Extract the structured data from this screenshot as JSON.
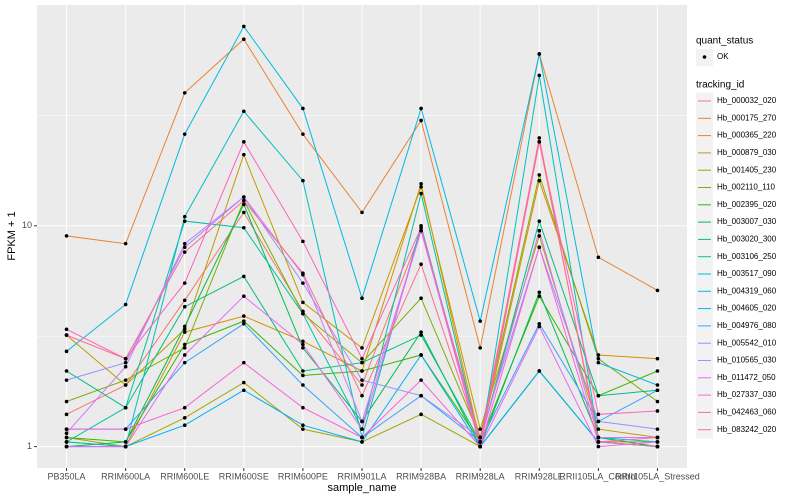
{
  "chart_data": {
    "type": "line",
    "x_label": "sample_name",
    "y_label": "FPKM + 1",
    "log_y": true,
    "grid": true,
    "categories": [
      "PB350LA",
      "RRIM600LA",
      "RRIM600LE",
      "RRIM600SE",
      "RRIM600PE",
      "RRIM901LA",
      "RRIM928BA",
      "RRIM928LA",
      "RRIM928LE",
      "RRII105LA_Control",
      "RRII105LA_Stressed"
    ],
    "ylim": [
      0.8,
      100
    ],
    "yticks": [
      1,
      10
    ],
    "legend_position": "right",
    "quant_status": {
      "title": "quant_status",
      "levels": [
        "OK"
      ]
    },
    "legend_title": "tracking_id",
    "series": [
      {
        "name": "Hb_000032_020",
        "color": "#F8766D",
        "values": [
          1.4,
          1.9,
          4.6,
          11.5,
          4.1,
          1.9,
          9.5,
          1.1,
          24,
          1.1,
          1.1
        ]
      },
      {
        "name": "Hb_000175_270",
        "color": "#EA8331",
        "values": [
          9,
          8.3,
          40,
          70,
          26,
          11.5,
          30,
          2.8,
          60,
          7.2,
          5.1
        ]
      },
      {
        "name": "Hb_000365_220",
        "color": "#D89000",
        "values": [
          1.05,
          1.0,
          3.3,
          3.9,
          3.0,
          2.2,
          15.5,
          1.05,
          16,
          2.6,
          2.5
        ]
      },
      {
        "name": "Hb_000879_030",
        "color": "#C09B00",
        "values": [
          3.2,
          1.9,
          3.4,
          21,
          4.5,
          2.8,
          15,
          1.2,
          9,
          1.2,
          1.1
        ]
      },
      {
        "name": "Hb_001405_230",
        "color": "#A3A500",
        "values": [
          1.1,
          1.0,
          1.35,
          1.95,
          1.2,
          1.05,
          1.4,
          1.0,
          2.2,
          1.05,
          1.05
        ]
      },
      {
        "name": "Hb_002110_110",
        "color": "#7CAE00",
        "values": [
          1.6,
          2.0,
          2.8,
          13,
          4.0,
          2.4,
          4.7,
          1.1,
          17,
          2.5,
          1.6
        ]
      },
      {
        "name": "Hb_002395_020",
        "color": "#39B600",
        "values": [
          1.1,
          1.05,
          2.9,
          3.7,
          2.1,
          2.2,
          2.6,
          1.05,
          4.8,
          1.7,
          2.2
        ]
      },
      {
        "name": "Hb_003007_030",
        "color": "#00BB4E",
        "values": [
          1.0,
          1.05,
          3.5,
          12.5,
          2.8,
          1.3,
          3.3,
          1.0,
          5.0,
          1.1,
          1.0
        ]
      },
      {
        "name": "Hb_003020_300",
        "color": "#00BF7D",
        "values": [
          2.2,
          1.5,
          4.3,
          5.9,
          2.2,
          2.4,
          3.2,
          1.05,
          10.5,
          1.7,
          1.8
        ]
      },
      {
        "name": "Hb_003106_250",
        "color": "#00C1A3",
        "values": [
          1.05,
          1.5,
          10.5,
          9.8,
          4.0,
          1.2,
          14,
          1.0,
          2.2,
          1.05,
          1.0
        ]
      },
      {
        "name": "Hb_003517_090",
        "color": "#00BFC4",
        "values": [
          1.05,
          1.0,
          11,
          33,
          16,
          1.1,
          10,
          1.0,
          48,
          1.1,
          1.05
        ]
      },
      {
        "name": "Hb_004319_060",
        "color": "#00BAE0",
        "values": [
          2.7,
          4.4,
          26,
          80,
          34,
          4.7,
          34,
          3.7,
          60,
          2.4,
          1.9
        ]
      },
      {
        "name": "Hb_004605_020",
        "color": "#00B0F6",
        "values": [
          1.0,
          1.0,
          1.25,
          1.8,
          1.25,
          1.05,
          2.6,
          1.0,
          2.2,
          1.05,
          1.0
        ]
      },
      {
        "name": "Hb_004976_080",
        "color": "#35A2FF",
        "values": [
          1.2,
          1.2,
          2.4,
          3.6,
          1.9,
          1.1,
          1.7,
          1.05,
          3.6,
          1.3,
          1.8
        ]
      },
      {
        "name": "Hb_005542_010",
        "color": "#9590FF",
        "values": [
          2.0,
          2.4,
          8.0,
          13.5,
          5.5,
          2.0,
          1.7,
          1.1,
          8,
          1.3,
          1.2
        ]
      },
      {
        "name": "Hb_010565_030",
        "color": "#C77CFF",
        "values": [
          1.15,
          2.3,
          8.3,
          13.5,
          6,
          1.3,
          9.5,
          1.05,
          9.5,
          1.1,
          1.1
        ]
      },
      {
        "name": "Hb_011472_050",
        "color": "#E76BF3",
        "values": [
          1.0,
          1.0,
          2.6,
          4.8,
          2.9,
          1.2,
          9.5,
          1.0,
          3.5,
          1.0,
          1.05
        ]
      },
      {
        "name": "Hb_027337_030",
        "color": "#FA62DB",
        "values": [
          1.2,
          1.2,
          1.5,
          2.4,
          1.5,
          1.1,
          2.0,
          1.0,
          8,
          1.05,
          1.1
        ]
      },
      {
        "name": "Hb_042463_060",
        "color": "#FF62BC",
        "values": [
          3.4,
          2.5,
          5.5,
          24,
          8.5,
          2.5,
          9.8,
          1.0,
          24,
          1.4,
          1.45
        ]
      },
      {
        "name": "Hb_083242_020",
        "color": "#FF6C91",
        "values": [
          3.2,
          2.5,
          7.6,
          13,
          6.1,
          1.7,
          6.7,
          1.05,
          25,
          1.05,
          1.0
        ]
      }
    ]
  }
}
